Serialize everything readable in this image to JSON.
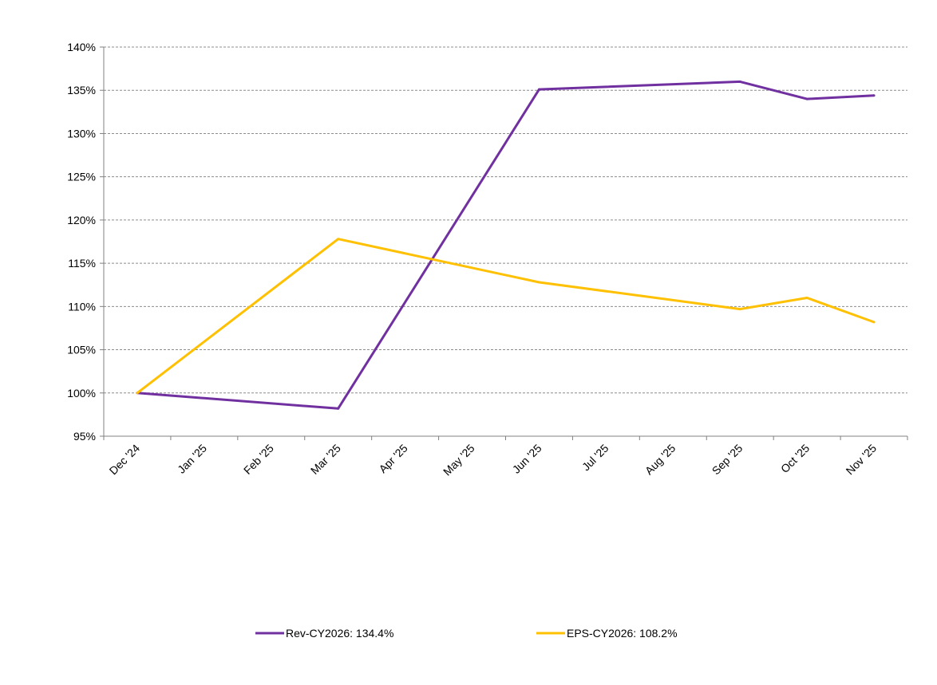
{
  "chart_data": {
    "type": "line",
    "categories": [
      "Dec '24",
      "Jan '25",
      "Feb '25",
      "Mar '25",
      "Apr '25",
      "May '25",
      "Jun '25",
      "Jul '25",
      "Aug '25",
      "Sep '25",
      "Oct '25",
      "Nov '25"
    ],
    "y_ticks": [
      "140%",
      "135%",
      "130%",
      "125%",
      "120%",
      "115%",
      "110%",
      "105%",
      "100%",
      "95%"
    ],
    "ylim": [
      95,
      140
    ],
    "y_unit": "%",
    "grid": true,
    "legend_position": "bottom",
    "series": [
      {
        "name": "Rev-CY2026: 134.4%",
        "color": "#7030A0",
        "x": [
          "Dec '24",
          "Mar '25",
          "Jun '25",
          "Sep '25",
          "Oct '25",
          "Nov '25"
        ],
        "values": [
          100.0,
          98.2,
          135.1,
          136.0,
          134.0,
          134.4
        ]
      },
      {
        "name": "EPS-CY2026: 108.2%",
        "color": "#FFC000",
        "x": [
          "Dec '24",
          "Mar '25",
          "Jun '25",
          "Sep '25",
          "Oct '25",
          "Nov '25"
        ],
        "values": [
          100.0,
          117.8,
          112.8,
          109.7,
          111.0,
          108.2
        ]
      }
    ]
  }
}
